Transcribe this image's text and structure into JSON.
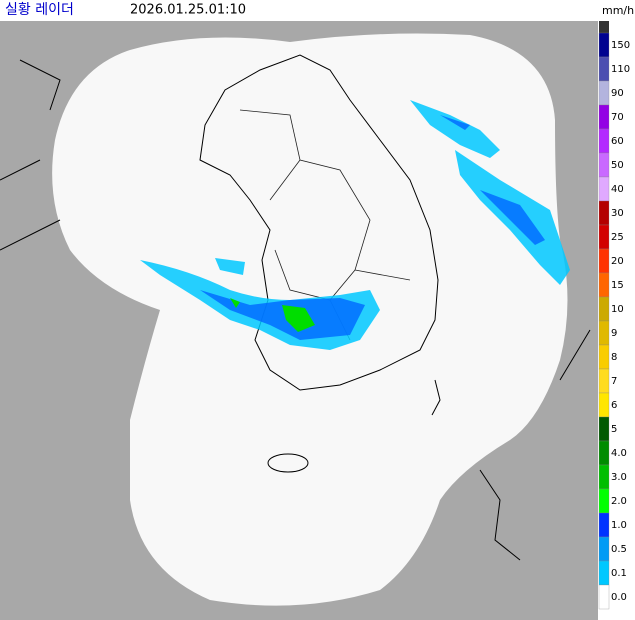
{
  "header": {
    "title": "실황 레이더",
    "timestamp": "2026.01.25.01:10",
    "unit": "mm/h"
  },
  "legend": {
    "top_color": "#333333",
    "items": [
      {
        "label": "150",
        "color": "#000390"
      },
      {
        "label": "110",
        "color": "#4c4eb1"
      },
      {
        "label": "90",
        "color": "#b3b4de"
      },
      {
        "label": "70",
        "color": "#9300e4"
      },
      {
        "label": "60",
        "color": "#b329ff"
      },
      {
        "label": "50",
        "color": "#c969ff"
      },
      {
        "label": "40",
        "color": "#e0a9ff"
      },
      {
        "label": "30",
        "color": "#b40000"
      },
      {
        "label": "25",
        "color": "#d20000"
      },
      {
        "label": "20",
        "color": "#ff3300"
      },
      {
        "label": "15",
        "color": "#ff6600"
      },
      {
        "label": "10",
        "color": "#ccaa00"
      },
      {
        "label": "9",
        "color": "#e0b900"
      },
      {
        "label": "8",
        "color": "#f9cd00"
      },
      {
        "label": "7",
        "color": "#ffdc1f"
      },
      {
        "label": "6",
        "color": "#ffe600"
      },
      {
        "label": "5",
        "color": "#005a00"
      },
      {
        "label": "4.0",
        "color": "#008c00"
      },
      {
        "label": "3.0",
        "color": "#00be00"
      },
      {
        "label": "2.0",
        "color": "#00ff00"
      },
      {
        "label": "1.0",
        "color": "#0033ff"
      },
      {
        "label": "0.5",
        "color": "#009bf5"
      },
      {
        "label": "0.1",
        "color": "#00c8ff"
      },
      {
        "label": "0.0",
        "color": "#ffffff"
      }
    ]
  }
}
